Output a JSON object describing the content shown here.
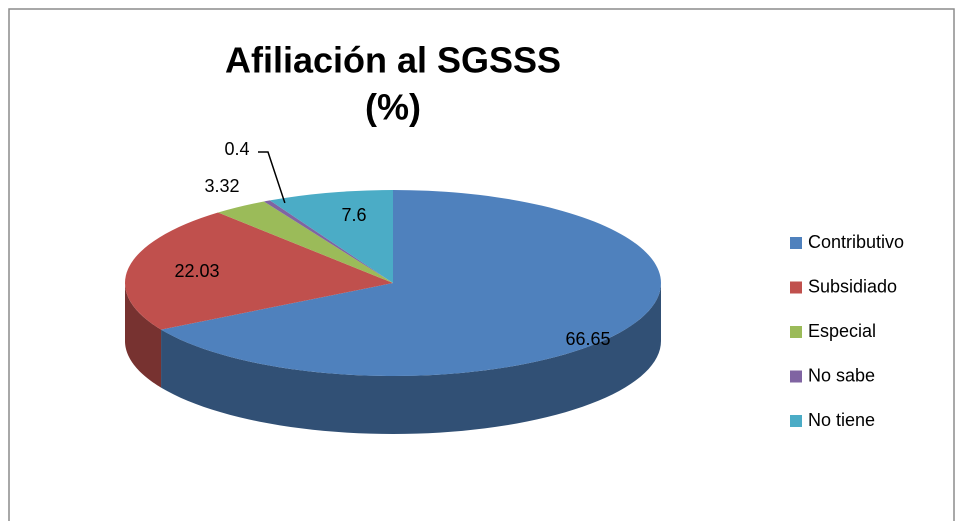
{
  "chart_data": {
    "type": "pie3d",
    "title": [
      "Afiliación al SGSSS",
      "(%)"
    ],
    "categories": [
      "Contributivo",
      "Subsidiado",
      "Especial",
      "No sabe",
      "No tiene"
    ],
    "values": [
      66.65,
      22.03,
      3.32,
      0.4,
      7.6
    ],
    "colors": [
      "#4f81bd",
      "#c0504d",
      "#9bbb59",
      "#8064a2",
      "#4bacc6"
    ],
    "legend": "right"
  }
}
